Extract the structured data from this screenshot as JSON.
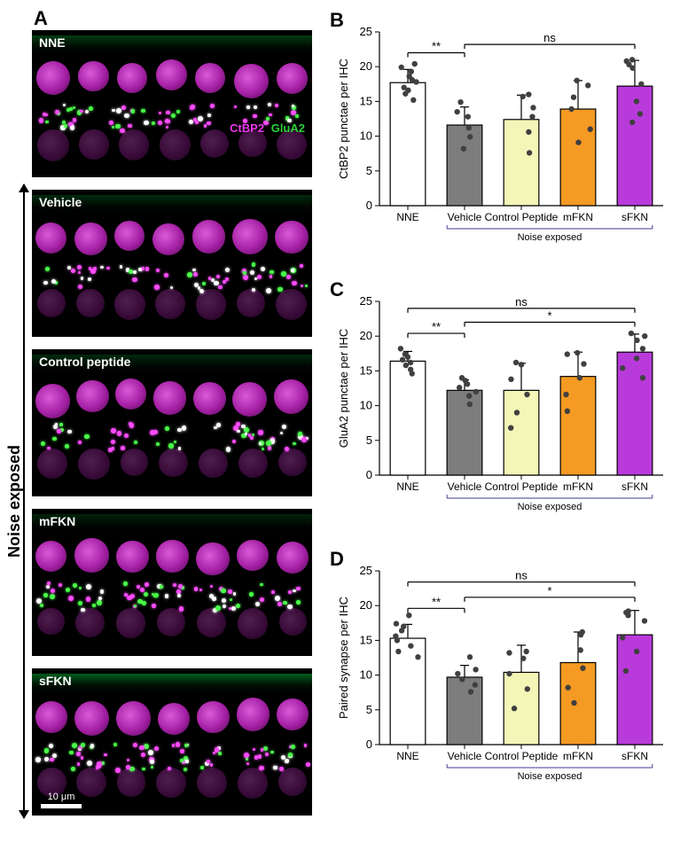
{
  "panelA": {
    "label": "A",
    "noise_exposed_label": "Noise exposed",
    "scalebar_label": "10 μm",
    "legend_magenta": "CtBP2",
    "legend_green": "GluA2",
    "micrographs": [
      {
        "title": "NNE",
        "show_legend": true,
        "green_intensity": 0.35
      },
      {
        "title": "Vehicle",
        "green_intensity": 0.25
      },
      {
        "title": "Control peptide",
        "green_intensity": 0.25
      },
      {
        "title": "mFKN",
        "green_intensity": 0.2
      },
      {
        "title": "sFKN",
        "show_scalebar": true,
        "green_intensity": 0.55
      }
    ]
  },
  "charts_common": {
    "categories": [
      "NNE",
      "Vehicle",
      "Control Peptide",
      "mFKN",
      "sFKN"
    ],
    "bar_fill": [
      "#ffffff",
      "#7d7d7d",
      "#f4f6b8",
      "#f59a23",
      "#b93adb"
    ],
    "bar_stroke": [
      "#000000",
      "#000000",
      "#000000",
      "#000000",
      "#000000"
    ],
    "noise_group_label": "Noise exposed",
    "noise_group_color": "#3b3b8f",
    "ylim": [
      0,
      25
    ],
    "yticks": [
      0,
      5,
      10,
      15,
      20,
      25
    ],
    "bar_width": 0.62,
    "point_color": "#404040",
    "err_cap": 5
  },
  "panelB": {
    "label": "B",
    "ylabel": "CtBP2 punctae per IHC",
    "means": [
      17.7,
      11.6,
      12.4,
      13.9,
      17.2
    ],
    "err": [
      1.9,
      2.6,
      3.5,
      4.1,
      3.7
    ],
    "points": [
      [
        15.2,
        16.1,
        16.6,
        17.0,
        17.8,
        18.1,
        18.6,
        19.3,
        19.9,
        20.4
      ],
      [
        8.2,
        9.9,
        11.2,
        12.8,
        13.5,
        14.9
      ],
      [
        7.6,
        10.6,
        12.8,
        14.1,
        15.7,
        16.0
      ],
      [
        9.1,
        11.0,
        13.9,
        15.6,
        17.3,
        18.0
      ],
      [
        12.0,
        13.2,
        15.0,
        17.5,
        19.8,
        20.3,
        20.8,
        21.0
      ]
    ],
    "sig": [
      {
        "from": 0,
        "to": 1,
        "label": "**",
        "y": 22
      },
      {
        "from": 1,
        "to": 4,
        "label": "ns",
        "y": 23.2,
        "ns": true
      }
    ]
  },
  "panelC": {
    "label": "C",
    "ylabel": "GluA2 punctae per IHC",
    "means": [
      16.4,
      12.2,
      12.2,
      14.2,
      17.7
    ],
    "err": [
      1.4,
      1.5,
      3.9,
      3.5,
      2.6
    ],
    "points": [
      [
        14.6,
        15.2,
        15.8,
        16.2,
        16.6,
        17.0,
        17.4,
        18.2
      ],
      [
        10.2,
        11.4,
        12.0,
        12.6,
        13.1,
        13.6,
        14.0
      ],
      [
        6.8,
        9.0,
        11.6,
        13.8,
        15.9,
        16.2
      ],
      [
        9.2,
        11.6,
        14.0,
        16.0,
        17.4,
        17.6
      ],
      [
        14.0,
        15.4,
        16.8,
        18.2,
        19.4,
        20.0,
        20.4
      ]
    ],
    "sig": [
      {
        "from": 0,
        "to": 1,
        "label": "**",
        "y": 20.4
      },
      {
        "from": 1,
        "to": 4,
        "label": "*",
        "y": 22.0
      },
      {
        "from": 0,
        "to": 4,
        "label": "ns",
        "y": 24.0,
        "ns": true
      }
    ]
  },
  "panelD": {
    "label": "D",
    "ylabel": "Paired synapse per IHC",
    "means": [
      15.3,
      9.7,
      10.4,
      11.8,
      15.8
    ],
    "err": [
      2.0,
      1.7,
      3.9,
      4.4,
      3.5
    ],
    "points": [
      [
        12.6,
        13.4,
        14.2,
        15.0,
        15.6,
        16.4,
        17.0,
        17.4,
        18.6
      ],
      [
        7.6,
        8.6,
        9.4,
        10.2,
        10.8,
        12.6
      ],
      [
        5.2,
        8.0,
        10.2,
        12.4,
        13.2,
        13.4
      ],
      [
        6.0,
        8.2,
        11.0,
        13.6,
        15.8,
        16.2
      ],
      [
        10.6,
        13.4,
        15.4,
        17.8,
        18.6,
        19.0,
        19.2
      ]
    ],
    "sig": [
      {
        "from": 0,
        "to": 1,
        "label": "**",
        "y": 19.6
      },
      {
        "from": 1,
        "to": 4,
        "label": "*",
        "y": 21.2
      },
      {
        "from": 0,
        "to": 4,
        "label": "ns",
        "y": 23.4,
        "ns": true
      }
    ]
  }
}
